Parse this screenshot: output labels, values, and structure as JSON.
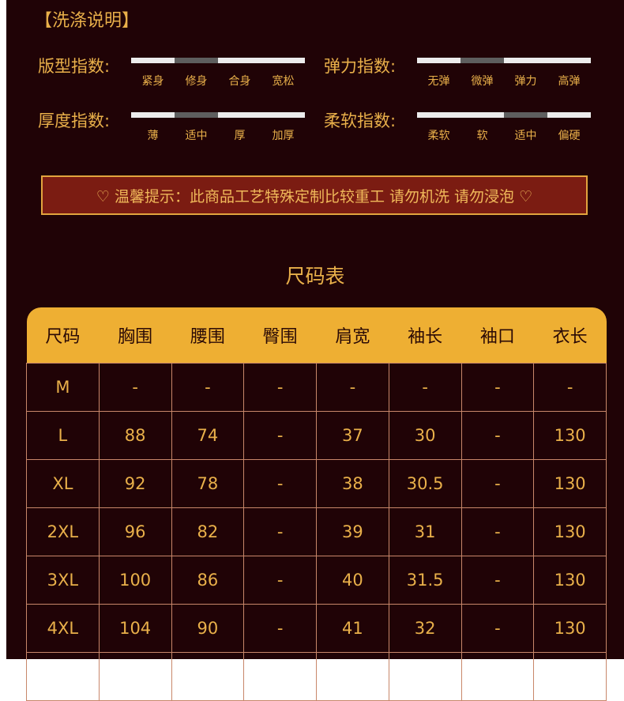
{
  "wash_title": "【洗涤说明】",
  "indices": [
    {
      "label": "版型指数:",
      "options": [
        "紧身",
        "修身",
        "合身",
        "宽松"
      ],
      "selected": 1
    },
    {
      "label": "弹力指数:",
      "options": [
        "无弹",
        "微弹",
        "弹力",
        "高弹"
      ],
      "selected": 1
    },
    {
      "label": "厚度指数:",
      "options": [
        "薄",
        "适中",
        "厚",
        "加厚"
      ],
      "selected": 1
    },
    {
      "label": "柔软指数:",
      "options": [
        "柔软",
        "软",
        "适中",
        "偏硬"
      ],
      "selected": 2
    }
  ],
  "notice": "♡ 温馨提示：此商品工艺特殊定制比较重工 请勿机洗 请勿浸泡 ♡",
  "size_title": "尺码表",
  "table": {
    "headers": [
      "尺码",
      "胸围",
      "腰围",
      "臀围",
      "肩宽",
      "袖长",
      "袖口",
      "衣长"
    ],
    "rows": [
      [
        "M",
        "-",
        "-",
        "-",
        "-",
        "-",
        "-",
        "-"
      ],
      [
        "L",
        "88",
        "74",
        "-",
        "37",
        "30",
        "-",
        "130"
      ],
      [
        "XL",
        "92",
        "78",
        "-",
        "38",
        "30.5",
        "-",
        "130"
      ],
      [
        "2XL",
        "96",
        "82",
        "-",
        "39",
        "31",
        "-",
        "130"
      ],
      [
        "3XL",
        "100",
        "86",
        "-",
        "40",
        "31.5",
        "-",
        "130"
      ],
      [
        "4XL",
        "104",
        "90",
        "-",
        "41",
        "32",
        "-",
        "130"
      ]
    ]
  },
  "colors": {
    "background": "#200306",
    "accent": "#eeaf33",
    "notice_bg": "#7b1c12"
  }
}
